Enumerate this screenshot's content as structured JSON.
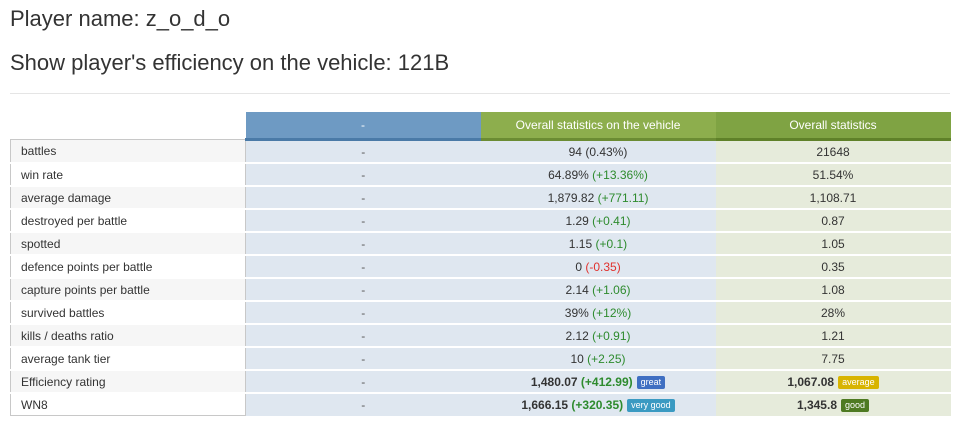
{
  "header": {
    "player_name": "Player name: z_o_d_o",
    "vehicle_title": "Show player's efficiency on the vehicle: 121B"
  },
  "table": {
    "columns": {
      "dash": "-",
      "vehicle": "Overall statistics on the vehicle",
      "overall": "Overall statistics"
    },
    "rows": [
      {
        "label": "battles",
        "dash": "-",
        "vehicle": "94",
        "vehicle_diff": "(0.43%)",
        "vehicle_diff_sign": "neutral",
        "overall": "21648"
      },
      {
        "label": "win rate",
        "dash": "-",
        "vehicle": "64.89%",
        "vehicle_diff": "(+13.36%)",
        "vehicle_diff_sign": "pos",
        "overall": "51.54%"
      },
      {
        "label": "average damage",
        "dash": "-",
        "vehicle": "1,879.82",
        "vehicle_diff": "(+771.11)",
        "vehicle_diff_sign": "pos",
        "overall": "1,108.71"
      },
      {
        "label": "destroyed per battle",
        "dash": "-",
        "vehicle": "1.29",
        "vehicle_diff": "(+0.41)",
        "vehicle_diff_sign": "pos",
        "overall": "0.87"
      },
      {
        "label": "spotted",
        "dash": "-",
        "vehicle": "1.15",
        "vehicle_diff": "(+0.1)",
        "vehicle_diff_sign": "pos",
        "overall": "1.05"
      },
      {
        "label": "defence points per battle",
        "dash": "-",
        "vehicle": "0",
        "vehicle_diff": "(-0.35)",
        "vehicle_diff_sign": "neg",
        "overall": "0.35"
      },
      {
        "label": "capture points per battle",
        "dash": "-",
        "vehicle": "2.14",
        "vehicle_diff": "(+1.06)",
        "vehicle_diff_sign": "pos",
        "overall": "1.08"
      },
      {
        "label": "survived battles",
        "dash": "-",
        "vehicle": "39%",
        "vehicle_diff": "(+12%)",
        "vehicle_diff_sign": "pos",
        "overall": "28%"
      },
      {
        "label": "kills / deaths ratio",
        "dash": "-",
        "vehicle": "2.12",
        "vehicle_diff": "(+0.91)",
        "vehicle_diff_sign": "pos",
        "overall": "1.21"
      },
      {
        "label": "average tank tier",
        "dash": "-",
        "vehicle": "10",
        "vehicle_diff": "(+2.25)",
        "vehicle_diff_sign": "pos",
        "overall": "7.75"
      }
    ],
    "ratings": [
      {
        "label": "Efficiency rating",
        "dash": "-",
        "vehicle": "1,480.07",
        "vehicle_diff": "(+412.99)",
        "vehicle_badge": "great",
        "vehicle_badge_color": "#3f6fc2",
        "overall": "1,067.08",
        "overall_badge": "average",
        "overall_badge_color": "#d8b400"
      },
      {
        "label": "WN8",
        "dash": "-",
        "vehicle": "1,666.15",
        "vehicle_diff": "(+320.35)",
        "vehicle_badge": "very good",
        "vehicle_badge_color": "#3a9ac2",
        "overall": "1,345.8",
        "overall_badge": "good",
        "overall_badge_color": "#4e7a22"
      }
    ]
  }
}
